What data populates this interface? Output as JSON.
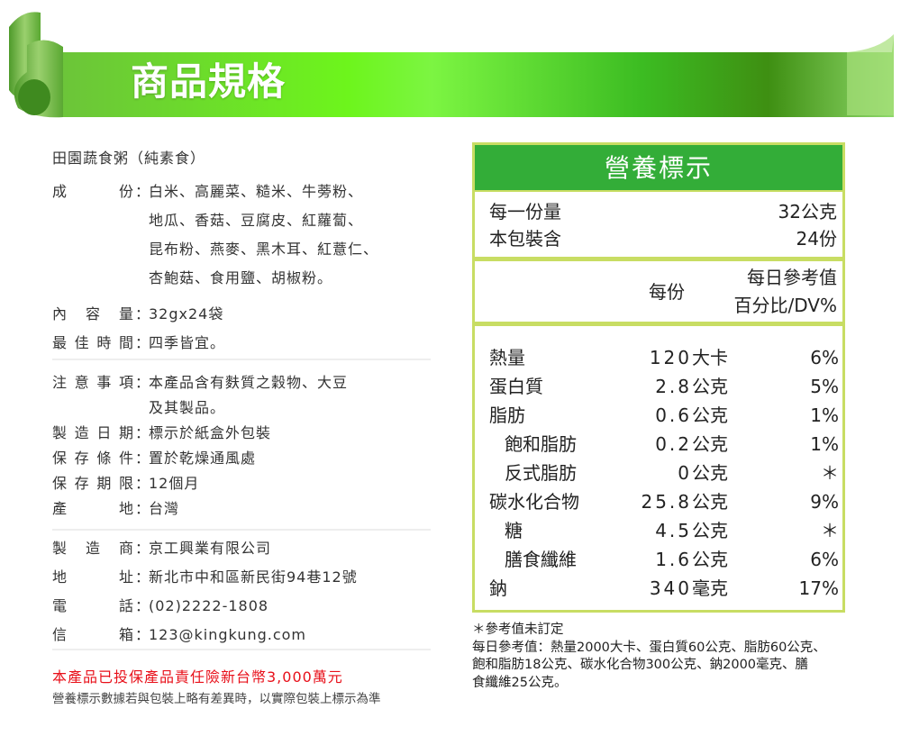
{
  "banner": {
    "title": "商品規格",
    "color": "#5ed428"
  },
  "product": {
    "name": "田園蔬食粥（純素食）",
    "ingredients_label": [
      "成",
      "份"
    ],
    "ingredients_lines": [
      "白米、高麗菜、糙米、牛蒡粉、",
      "地瓜、香菇、豆腐皮、紅蘿蔔、",
      "昆布粉、燕麥、黑木耳、紅薏仁、",
      "杏鮑菇、食用鹽、胡椒粉。"
    ],
    "rows1": [
      {
        "label": [
          "內",
          "容",
          "量"
        ],
        "value": "32gx24袋"
      },
      {
        "label": [
          "最",
          "佳",
          "時",
          "間"
        ],
        "value": "四季皆宜。"
      }
    ],
    "notice_label": [
      "注",
      "意",
      "事",
      "項"
    ],
    "notice_lines": [
      "本產品含有麩質之穀物、大豆",
      "及其製品。"
    ],
    "rows2": [
      {
        "label": [
          "製",
          "造",
          "日",
          "期"
        ],
        "value": "標示於紙盒外包裝"
      },
      {
        "label": [
          "保",
          "存",
          "條",
          "件"
        ],
        "value": "置於乾燥通風處"
      },
      {
        "label": [
          "保",
          "存",
          "期",
          "限"
        ],
        "value": "12個月"
      },
      {
        "label": [
          "產",
          "地"
        ],
        "value": "台灣"
      }
    ],
    "rows3": [
      {
        "label": [
          "製",
          "造",
          "商"
        ],
        "value": "京工興業有限公司"
      },
      {
        "label": [
          "地",
          "址"
        ],
        "value": "新北市中和區新民街94巷12號"
      },
      {
        "label": [
          "電",
          "話"
        ],
        "value": "(02)2222-1808"
      },
      {
        "label": [
          "信",
          "箱"
        ],
        "value": "123@kingkung.com"
      }
    ],
    "colon": "：",
    "insurance": "本產品已投保產品責任險新台幣3,000萬元",
    "disclaimer": "營養標示數據若與包裝上略有差異時，以實際包裝上標示為準"
  },
  "nutrition": {
    "title": "營養標示",
    "header_color": "#33ad38",
    "border_color": "#c8dd63",
    "serving_size_label": "每一份量",
    "serving_size_value": "32公克",
    "servings_label": "本包裝含",
    "servings_value": "24份",
    "col_per_serving": "每份",
    "col_dv_line1": "每日參考值",
    "col_dv_line2": "百分比/DV%",
    "rows": [
      {
        "name": "熱量",
        "indent": false,
        "amount": "120",
        "unit": "大卡",
        "dv": "6%"
      },
      {
        "name": "蛋白質",
        "indent": false,
        "amount": "2.8",
        "unit": "公克",
        "dv": "5%"
      },
      {
        "name": "脂肪",
        "indent": false,
        "amount": "0.6",
        "unit": "公克",
        "dv": "1%"
      },
      {
        "name": "飽和脂肪",
        "indent": true,
        "amount": "0.2",
        "unit": "公克",
        "dv": "1%"
      },
      {
        "name": "反式脂肪",
        "indent": true,
        "amount": "0",
        "unit": "公克",
        "dv": "＊"
      },
      {
        "name": "碳水化合物",
        "indent": false,
        "amount": "25.8",
        "unit": "公克",
        "dv": "9%"
      },
      {
        "name": "糖",
        "indent": true,
        "amount": "4.5",
        "unit": "公克",
        "dv": "＊"
      },
      {
        "name": "膳食纖維",
        "indent": true,
        "amount": "1.6",
        "unit": "公克",
        "dv": "6%"
      },
      {
        "name": "鈉",
        "indent": false,
        "amount": "340",
        "unit": "毫克",
        "dv": "17%"
      }
    ],
    "notes": [
      "＊參考值未訂定",
      "每日參考值：熱量2000大卡、蛋白質60公克、脂肪60公克、",
      "飽和脂肪18公克、碳水化合物300公克、鈉2000毫克、膳",
      "食纖維25公克。"
    ]
  }
}
